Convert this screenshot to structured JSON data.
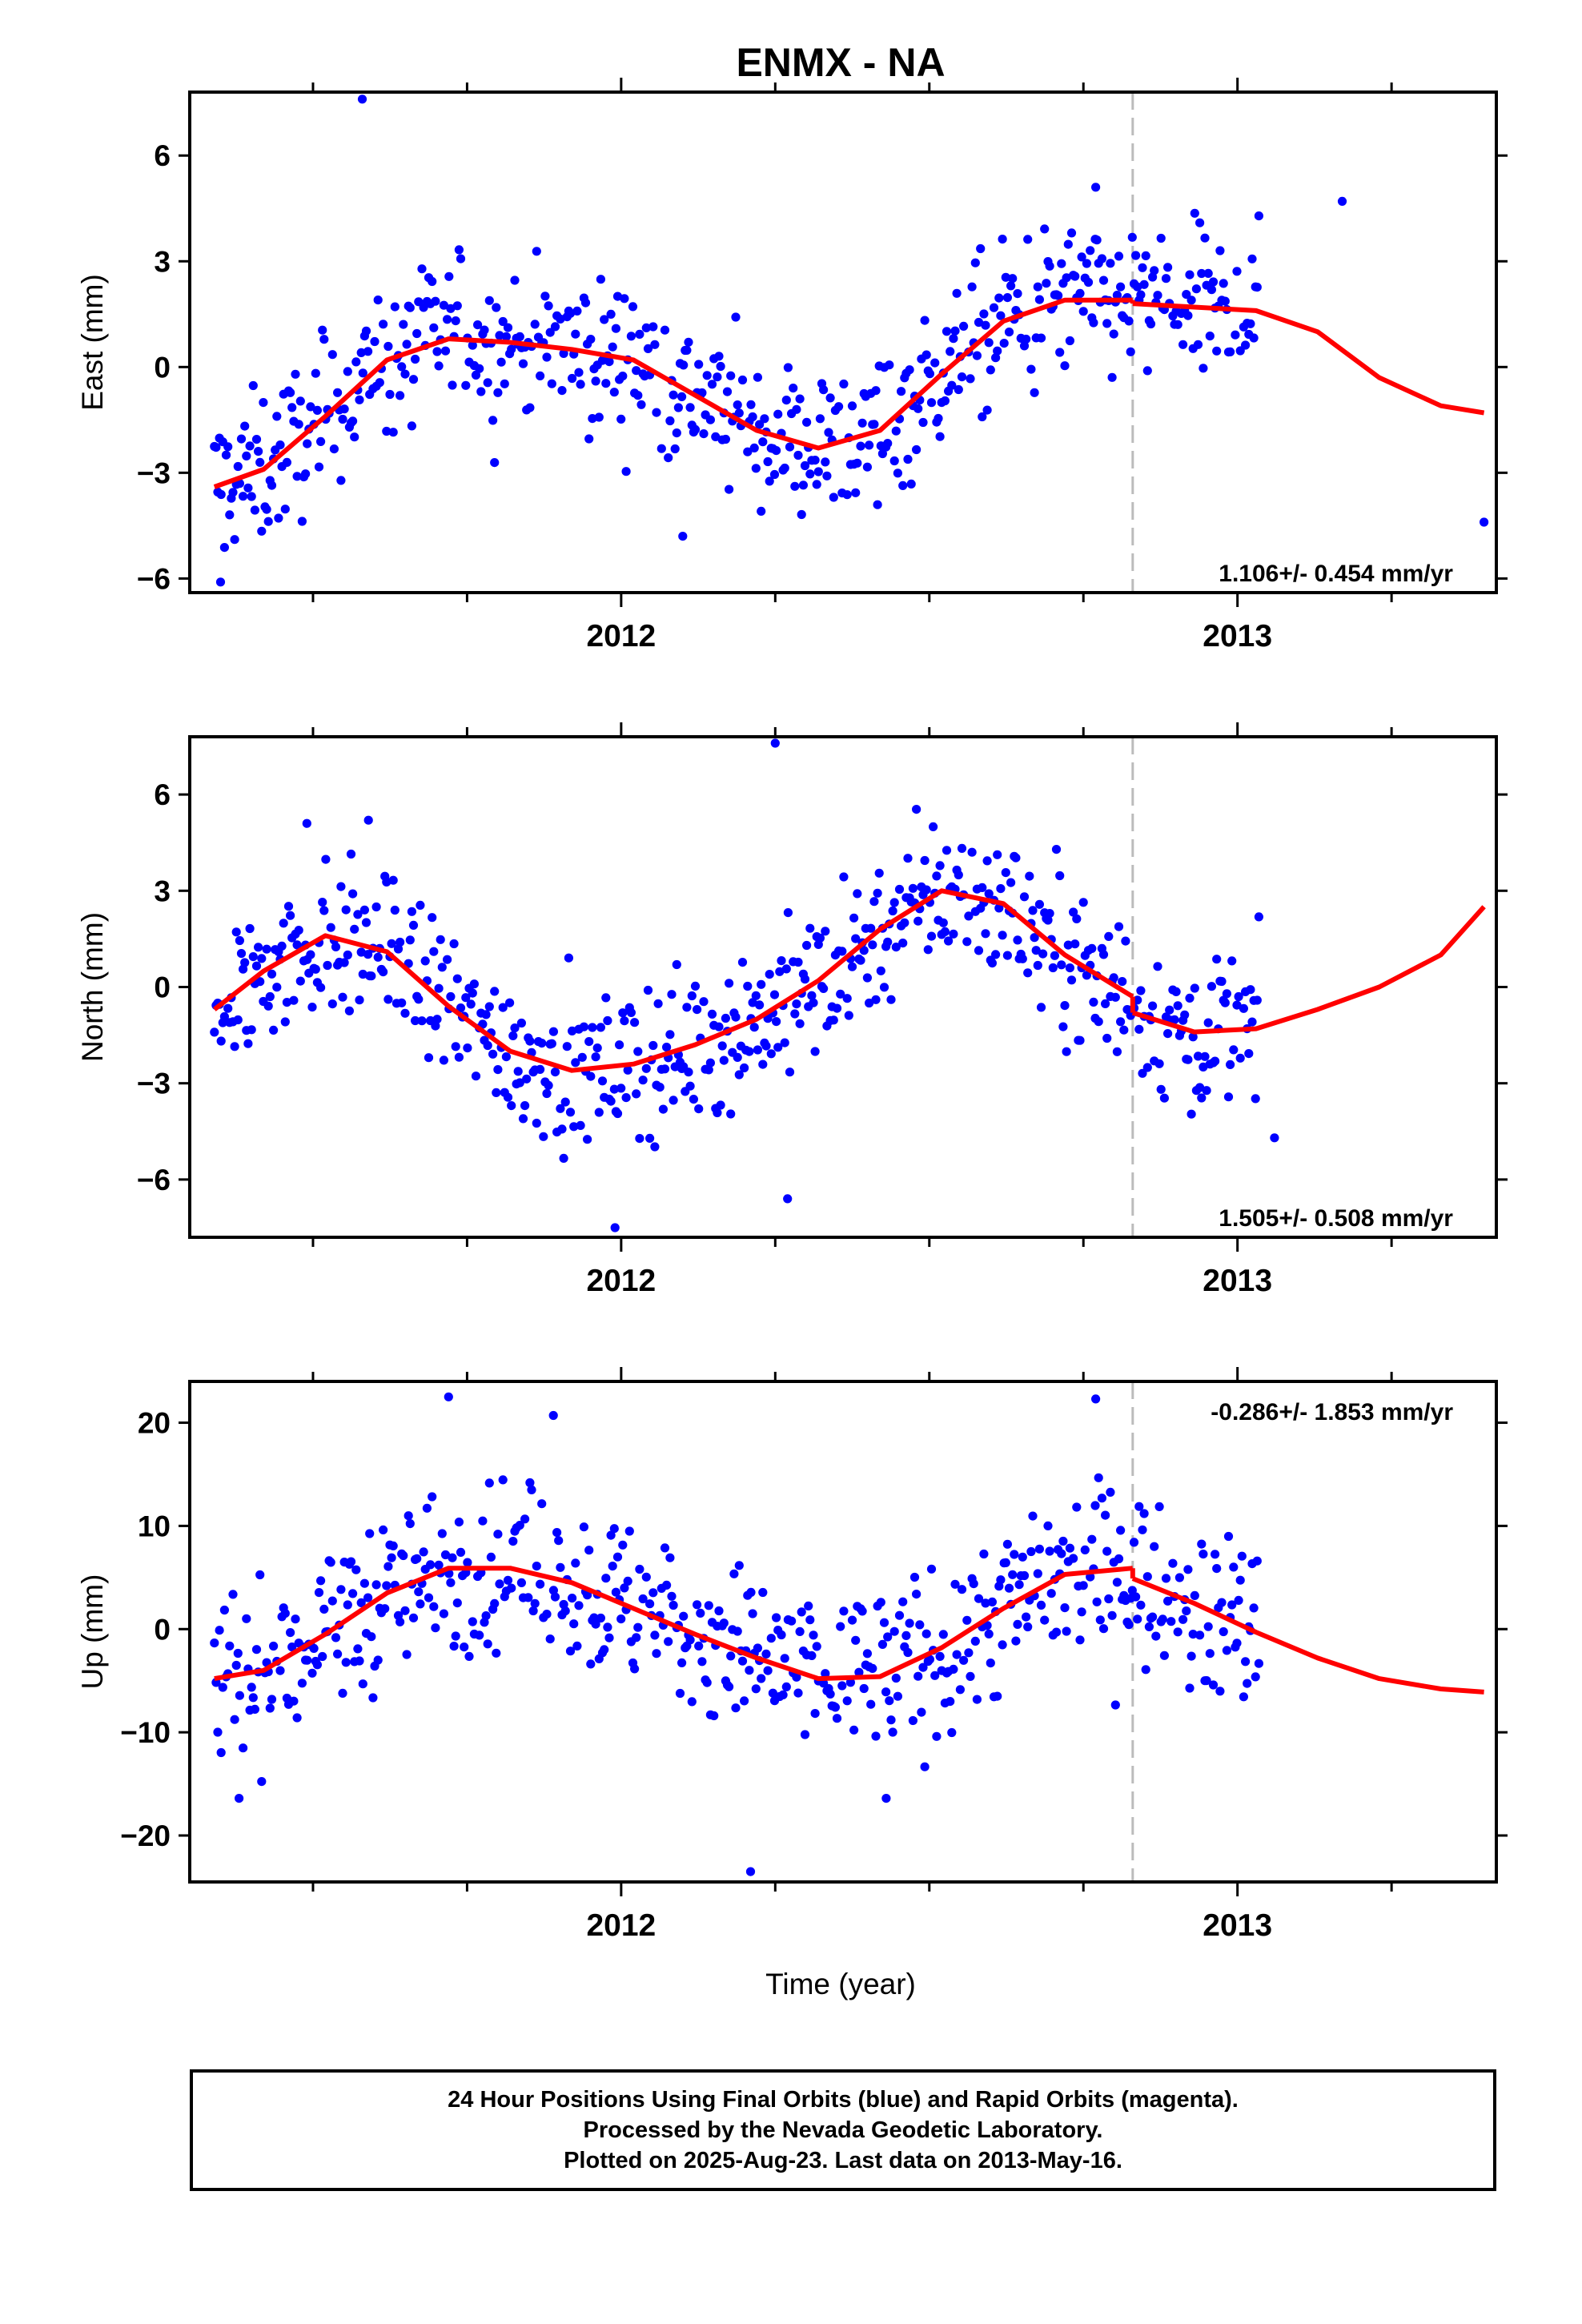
{
  "title": "ENMX - NA",
  "xlabel": "Time (year)",
  "footer": {
    "line1": "24 Hour Positions Using Final Orbits (blue) and Rapid Orbits (magenta).",
    "line2": "Processed by the Nevada Geodetic Laboratory.",
    "line3": "Plotted on 2025-Aug-23. Last data on 2013-May-16."
  },
  "colors": {
    "points": "#0000ff",
    "fit": "#ff0000",
    "break_line": "#bbbbbb",
    "frame": "#000000"
  },
  "chart_data": [
    {
      "type": "scatter",
      "ylabel": "East (mm)",
      "rate_label": "1.106+/- 0.454 mm/yr",
      "xlim": [
        2011.3,
        2013.42
      ],
      "ylim": [
        -6.4,
        7.8
      ],
      "x_ticks": [
        2012,
        2013
      ],
      "y_ticks": [
        -6,
        -3,
        0,
        3,
        6
      ],
      "break_x": 2012.83,
      "fit_segments": [
        {
          "x": [
            2011.34,
            2011.42,
            2011.52,
            2011.62,
            2011.72,
            2011.82,
            2011.92,
            2012.02,
            2012.12,
            2012.22,
            2012.32,
            2012.42,
            2012.52,
            2012.62,
            2012.72,
            2012.83
          ],
          "y": [
            -3.4,
            -2.9,
            -1.4,
            0.2,
            0.8,
            0.7,
            0.5,
            0.2,
            -0.8,
            -1.8,
            -2.3,
            -1.8,
            -0.2,
            1.3,
            1.9,
            1.9
          ]
        },
        {
          "x": [
            2012.83,
            2012.93,
            2013.03,
            2013.13,
            2013.23,
            2013.33,
            2013.4
          ],
          "y": [
            1.8,
            1.7,
            1.6,
            1.0,
            -0.3,
            -1.1,
            -1.3
          ]
        }
      ],
      "noise": 1.1,
      "outliers": [
        [
          2011.58,
          7.6
        ],
        [
          2011.35,
          -6.1
        ],
        [
          2012.1,
          -4.8
        ],
        [
          2012.77,
          5.1
        ],
        [
          2013.17,
          4.7
        ],
        [
          2013.4,
          -4.4
        ]
      ]
    },
    {
      "type": "scatter",
      "ylabel": "North (mm)",
      "rate_label": "1.505+/- 0.508 mm/yr",
      "xlim": [
        2011.3,
        2013.42
      ],
      "ylim": [
        -7.8,
        7.8
      ],
      "x_ticks": [
        2012,
        2013
      ],
      "y_ticks": [
        -6,
        -3,
        0,
        3,
        6
      ],
      "break_x": 2012.83,
      "fit_segments": [
        {
          "x": [
            2011.34,
            2011.42,
            2011.52,
            2011.62,
            2011.72,
            2011.82,
            2011.92,
            2012.02,
            2012.12,
            2012.22,
            2012.32,
            2012.42,
            2012.52,
            2012.62,
            2012.72,
            2012.83
          ],
          "y": [
            -0.7,
            0.5,
            1.6,
            1.1,
            -0.6,
            -2.0,
            -2.6,
            -2.4,
            -1.8,
            -1.0,
            0.2,
            1.8,
            3.0,
            2.6,
            1.0,
            -0.3
          ]
        },
        {
          "x": [
            2012.83,
            2012.93,
            2013.03,
            2013.13,
            2013.23,
            2013.33,
            2013.4
          ],
          "y": [
            -0.8,
            -1.4,
            -1.3,
            -0.7,
            0.0,
            1.0,
            2.5
          ]
        }
      ],
      "noise": 1.2,
      "outliers": [
        [
          2012.25,
          7.6
        ],
        [
          2011.99,
          -7.5
        ],
        [
          2012.27,
          -6.6
        ],
        [
          2011.59,
          5.2
        ],
        [
          2011.49,
          5.1
        ],
        [
          2013.06,
          -4.7
        ]
      ]
    },
    {
      "type": "scatter",
      "ylabel": "Up (mm)",
      "rate_label": "-0.286+/- 1.853 mm/yr",
      "xlim": [
        2011.3,
        2013.42
      ],
      "ylim": [
        -24.5,
        24
      ],
      "x_ticks": [
        2012,
        2013
      ],
      "y_ticks": [
        -20,
        -10,
        0,
        10,
        20
      ],
      "break_x": 2012.83,
      "fit_segments": [
        {
          "x": [
            2011.34,
            2011.42,
            2011.52,
            2011.62,
            2011.72,
            2011.82,
            2011.92,
            2012.02,
            2012.12,
            2012.22,
            2012.32,
            2012.42,
            2012.52,
            2012.62,
            2012.72,
            2012.83
          ],
          "y": [
            -4.8,
            -4.0,
            -0.5,
            3.5,
            5.9,
            5.9,
            4.5,
            2.0,
            -0.5,
            -2.8,
            -4.8,
            -4.6,
            -1.8,
            2.0,
            5.3,
            5.9
          ]
        },
        {
          "x": [
            2012.83,
            2012.93,
            2013.03,
            2013.13,
            2013.23,
            2013.33,
            2013.4
          ],
          "y": [
            4.9,
            2.5,
            -0.3,
            -2.8,
            -4.8,
            -5.8,
            -6.1
          ]
        }
      ],
      "noise": 4.2,
      "outliers": [
        [
          2011.72,
          22.5
        ],
        [
          2012.21,
          -23.5
        ],
        [
          2012.77,
          22.3
        ],
        [
          2011.89,
          20.7
        ],
        [
          2011.38,
          -16.4
        ],
        [
          2012.43,
          -16.4
        ]
      ]
    }
  ]
}
